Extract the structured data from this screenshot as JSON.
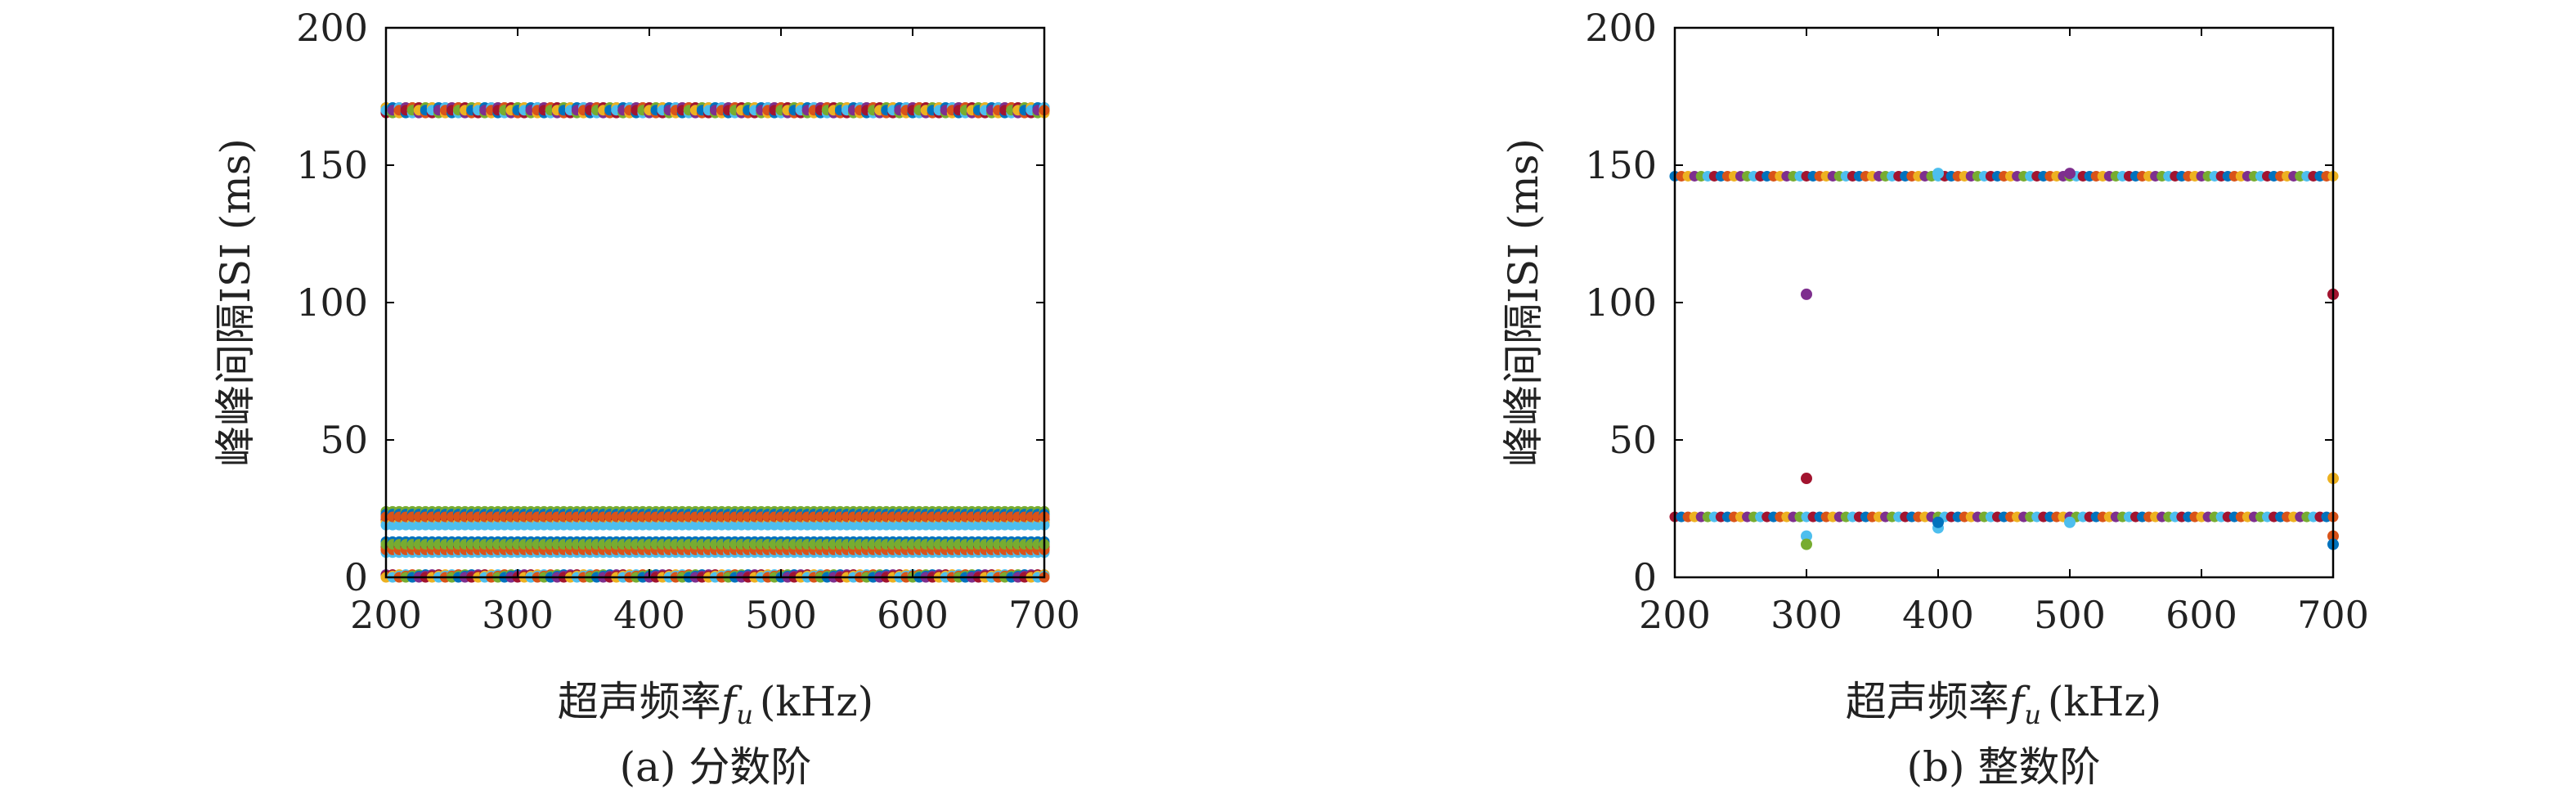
{
  "palette": [
    "#0072bd",
    "#d95319",
    "#edb120",
    "#7e2f8e",
    "#77ac30",
    "#4dbeee",
    "#a2142f"
  ],
  "chart_data": [
    {
      "type": "scatter",
      "caption": "(a) 分数阶",
      "xlabel": "超声频率",
      "xlabel_var": "f",
      "xlabel_sub": "u",
      "xlabel_unit": "(kHz)",
      "ylabel": "峰峰间隔ISI (ms)",
      "xlim": [
        200,
        700
      ],
      "ylim": [
        0,
        200
      ],
      "xticks": [
        "200",
        "300",
        "400",
        "500",
        "600",
        "700"
      ],
      "yticks": [
        "0",
        "50",
        "100",
        "150",
        "200"
      ],
      "grid": false,
      "x_range": [
        200,
        700
      ],
      "x_step": 5,
      "series": [
        {
          "values": [
            171,
            170,
            169,
            171,
            170
          ]
        },
        {
          "values": [
            24,
            23,
            22,
            21,
            20,
            19,
            22
          ]
        },
        {
          "values": [
            13,
            12,
            11,
            10,
            9,
            10,
            12
          ]
        },
        {
          "values": [
            1,
            0.5,
            0
          ]
        }
      ]
    },
    {
      "type": "scatter",
      "caption": "(b) 整数阶",
      "xlabel": "超声频率",
      "xlabel_var": "f",
      "xlabel_sub": "u",
      "xlabel_unit": "(kHz)",
      "ylabel": "峰峰间隔ISI (ms)",
      "xlim": [
        200,
        700
      ],
      "ylim": [
        0,
        200
      ],
      "xticks": [
        "200",
        "300",
        "400",
        "500",
        "600",
        "700"
      ],
      "yticks": [
        "0",
        "50",
        "100",
        "150",
        "200"
      ],
      "grid": false,
      "x_range": [
        200,
        700
      ],
      "x_step": 5,
      "series": [
        {
          "values": [
            146
          ]
        },
        {
          "values": [
            22
          ]
        }
      ],
      "outliers": [
        {
          "x": 300,
          "y": 103,
          "color": "#7e2f8e"
        },
        {
          "x": 300,
          "y": 36,
          "color": "#a2142f"
        },
        {
          "x": 300,
          "y": 15,
          "color": "#4dbeee"
        },
        {
          "x": 300,
          "y": 12,
          "color": "#77ac30"
        },
        {
          "x": 400,
          "y": 147,
          "color": "#4dbeee"
        },
        {
          "x": 400,
          "y": 18,
          "color": "#4dbeee"
        },
        {
          "x": 400,
          "y": 20,
          "color": "#0072bd"
        },
        {
          "x": 500,
          "y": 147,
          "color": "#7e2f8e"
        },
        {
          "x": 500,
          "y": 20,
          "color": "#4dbeee"
        },
        {
          "x": 700,
          "y": 103,
          "color": "#a2142f"
        },
        {
          "x": 700,
          "y": 36,
          "color": "#edb120"
        },
        {
          "x": 700,
          "y": 15,
          "color": "#d95319"
        },
        {
          "x": 700,
          "y": 12,
          "color": "#0072bd"
        }
      ]
    }
  ]
}
